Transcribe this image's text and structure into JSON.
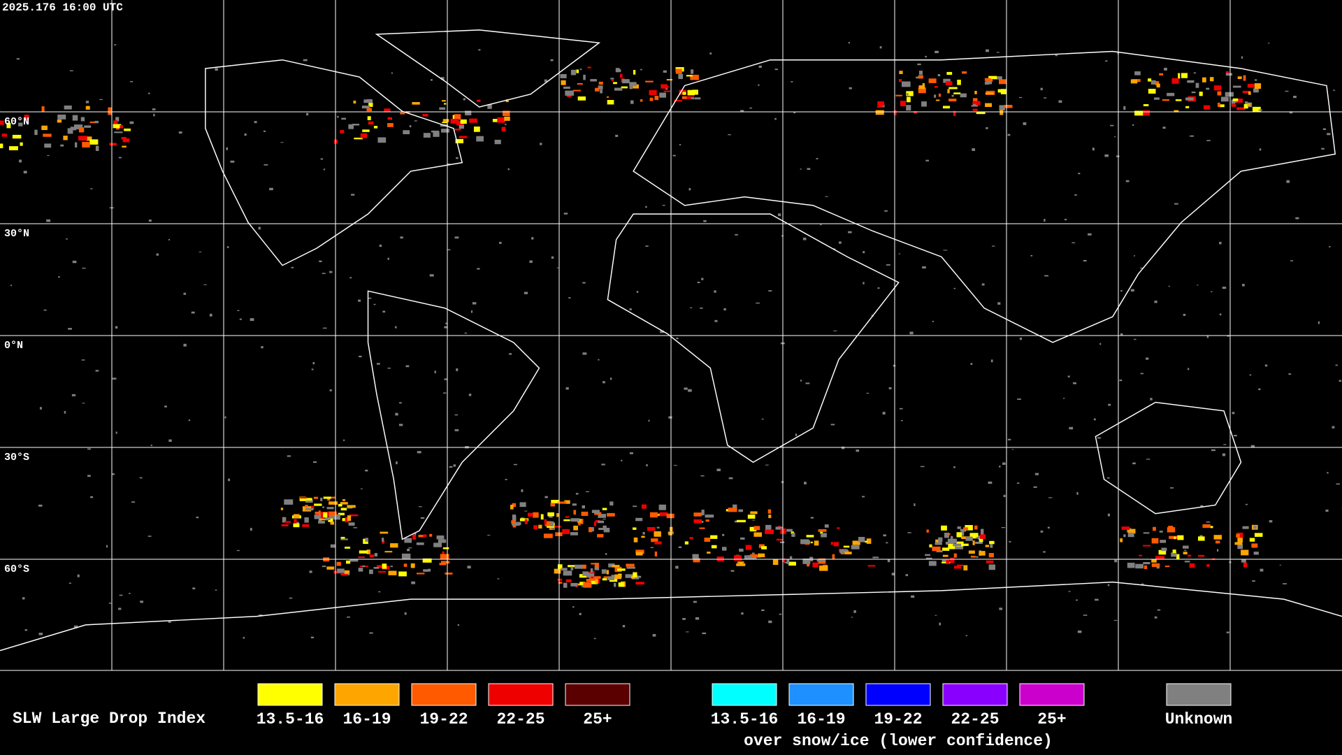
{
  "timestamp": "2025.176 16:00 UTC",
  "latitude_labels": [
    "60°N",
    "30°N",
    "0°N",
    "30°S",
    "60°S"
  ],
  "legend": {
    "title": "SLW Large Drop Index",
    "groups": [
      {
        "items": [
          {
            "label": "13.5-16",
            "color": "#ffff00"
          },
          {
            "label": "16-19",
            "color": "#ffa500"
          },
          {
            "label": "19-22",
            "color": "#ff5a00"
          },
          {
            "label": "22-25",
            "color": "#ee0000"
          },
          {
            "label": "25+",
            "color": "#5a0000"
          }
        ]
      },
      {
        "items": [
          {
            "label": "13.5-16",
            "color": "#00ffff"
          },
          {
            "label": "16-19",
            "color": "#1e90ff"
          },
          {
            "label": "19-22",
            "color": "#0000ff"
          },
          {
            "label": "22-25",
            "color": "#8a00ff"
          },
          {
            "label": "25+",
            "color": "#cc00cc"
          }
        ],
        "note": "over snow/ice (lower confidence)"
      }
    ],
    "unknown": {
      "label": "Unknown",
      "color": "#808080"
    }
  }
}
